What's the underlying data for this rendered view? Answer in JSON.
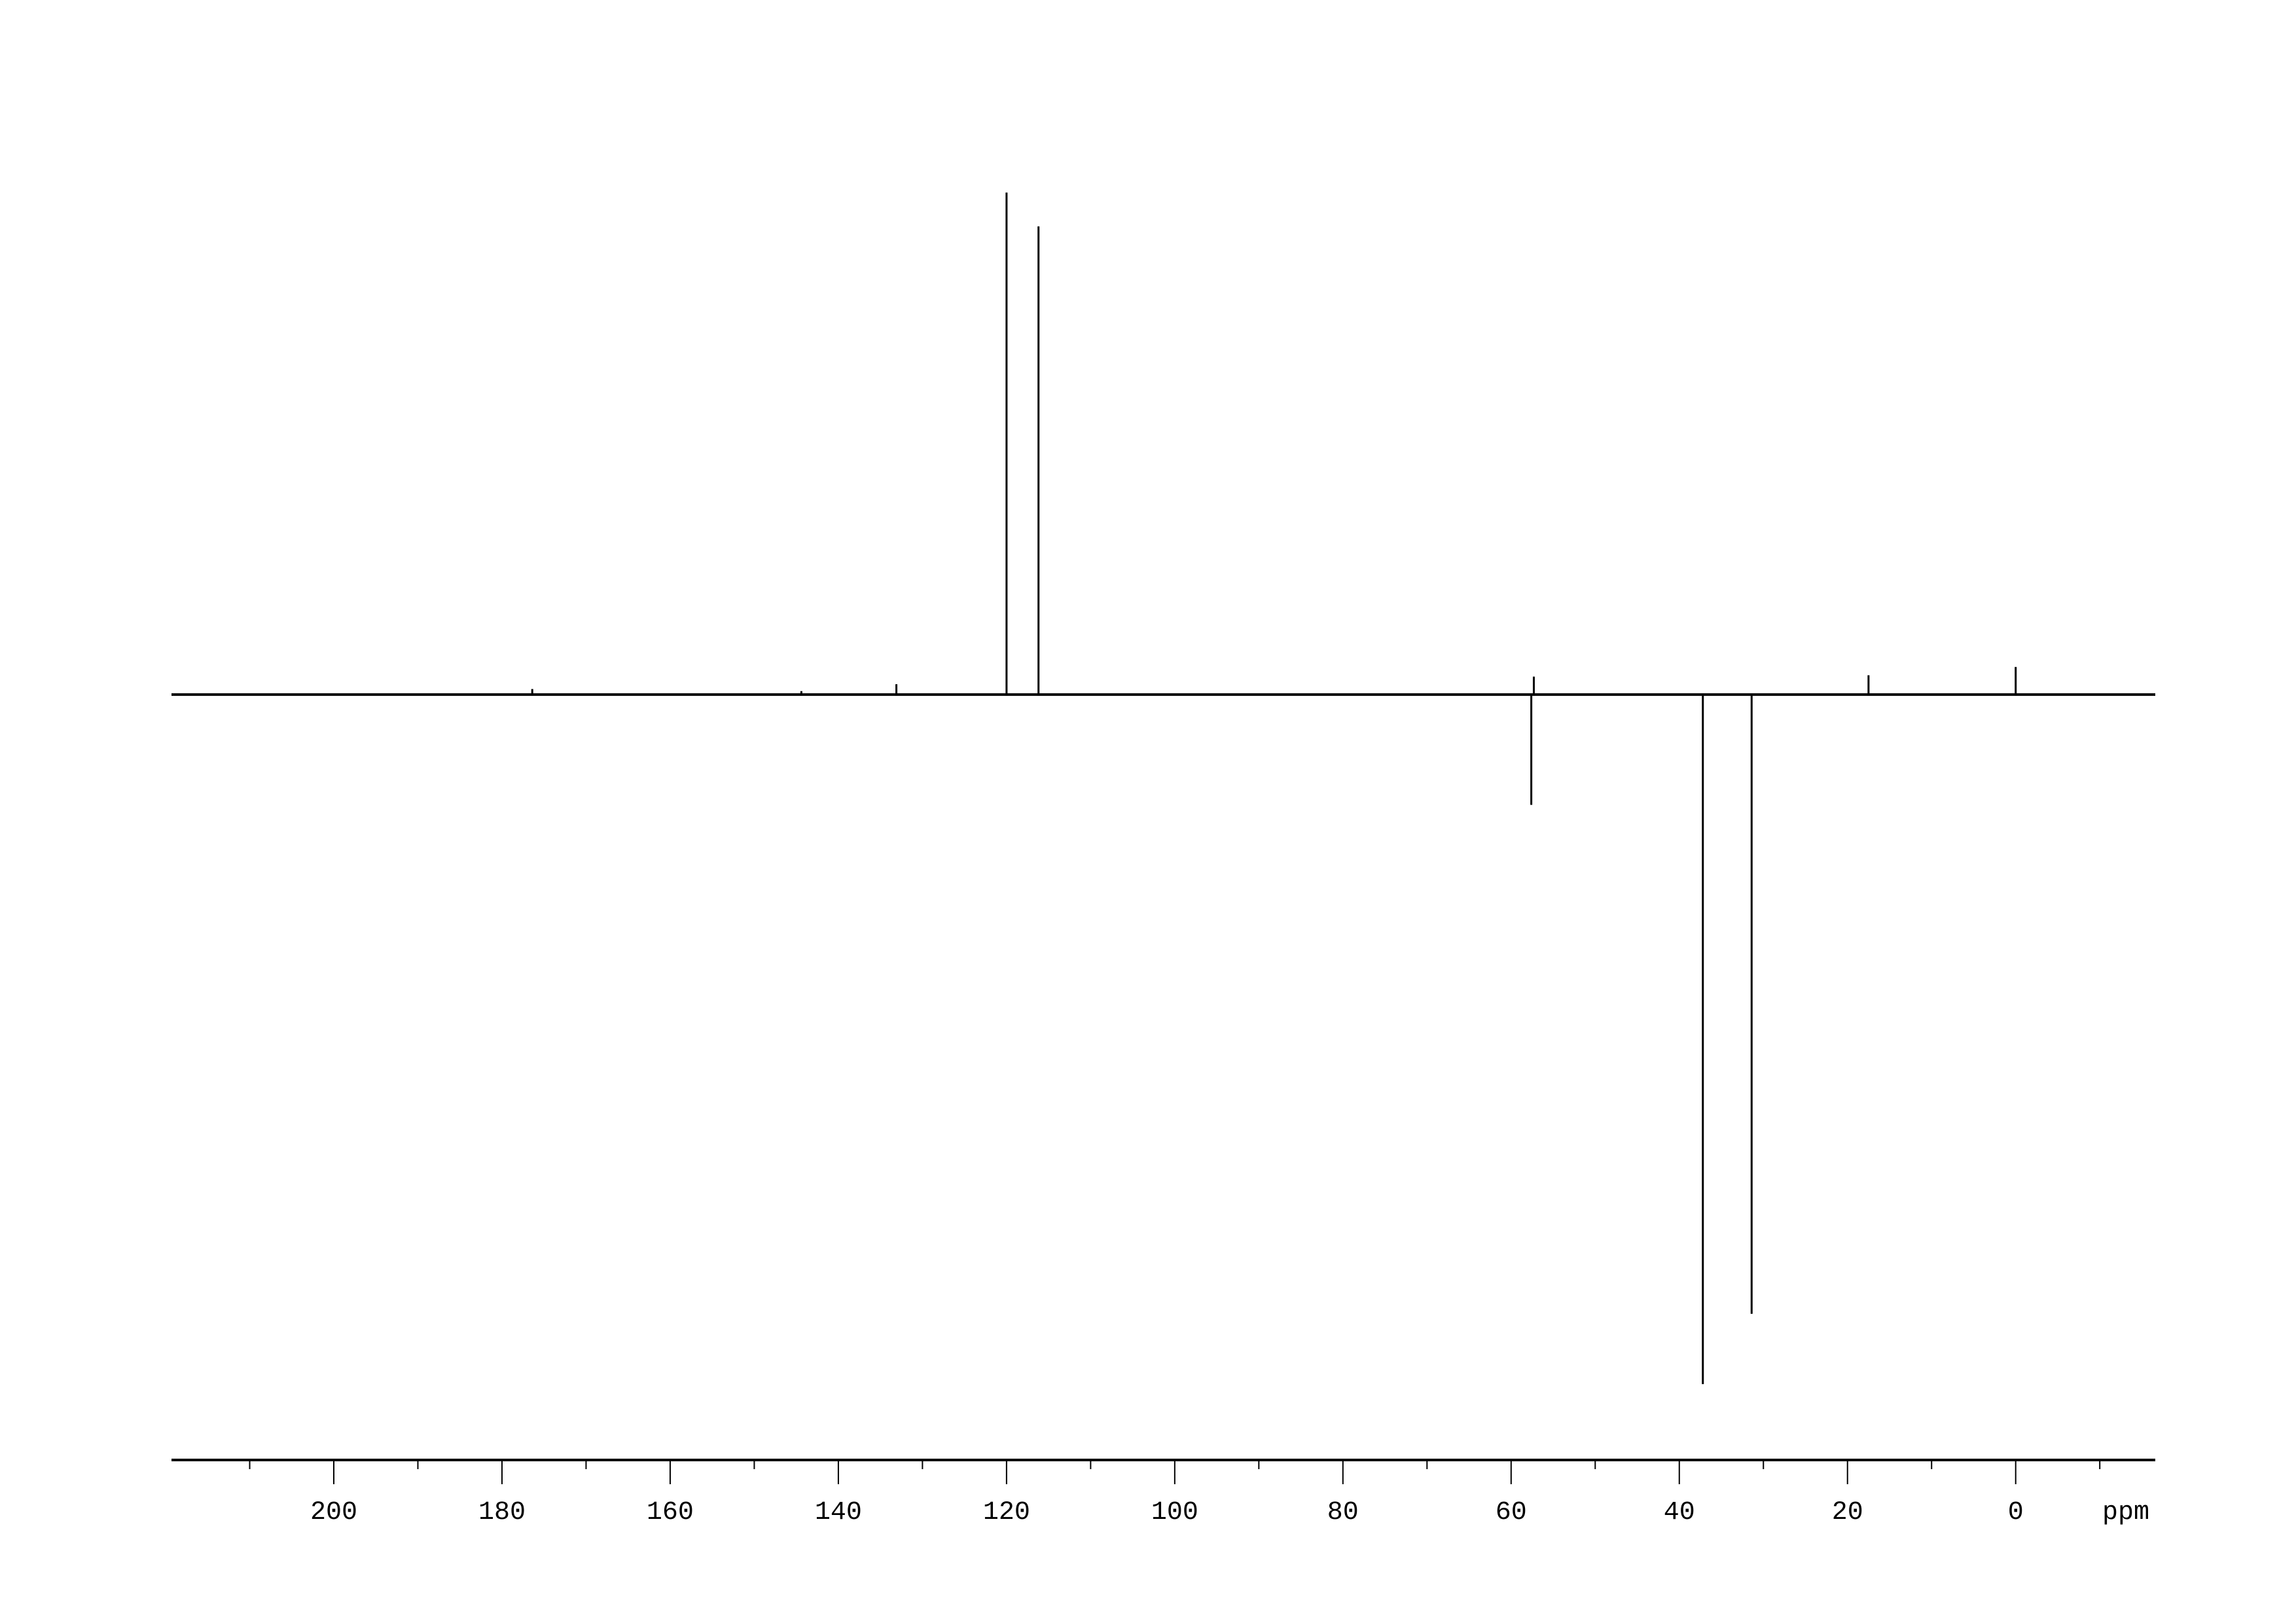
{
  "chart_data": {
    "type": "line",
    "title": "",
    "xlabel": "ppm",
    "ylabel": "",
    "xlim": [
      219.3,
      -16.6
    ],
    "ylim": [
      -111,
      88
    ],
    "x_reversed": true,
    "grid": false,
    "y_axis_shown": false,
    "line_color": "#000000",
    "x_ticks_major": [
      200,
      180,
      160,
      140,
      120,
      100,
      80,
      60,
      40,
      20,
      0
    ],
    "x_tick_labels": [
      "200",
      "180",
      "160",
      "140",
      "120",
      "100",
      "80",
      "60",
      "40",
      "20",
      "0"
    ],
    "x_ticks_minor": [
      210,
      190,
      170,
      150,
      130,
      110,
      90,
      70,
      50,
      30,
      10,
      -10
    ],
    "peaks": [
      {
        "ppm": 176.4,
        "intensity": 0.8
      },
      {
        "ppm": 144.4,
        "intensity": 0.5
      },
      {
        "ppm": 133.1,
        "intensity": 1.5
      },
      {
        "ppm": 120.0,
        "intensity": 72.8
      },
      {
        "ppm": 116.2,
        "intensity": 67.9
      },
      {
        "ppm": 57.6,
        "intensity": -16.0
      },
      {
        "ppm": 57.3,
        "intensity": 2.6
      },
      {
        "ppm": 37.2,
        "intensity": -100
      },
      {
        "ppm": 31.4,
        "intensity": -89.8
      },
      {
        "ppm": 17.5,
        "intensity": 2.8
      },
      {
        "ppm": 0.0,
        "intensity": 4.0
      }
    ]
  }
}
